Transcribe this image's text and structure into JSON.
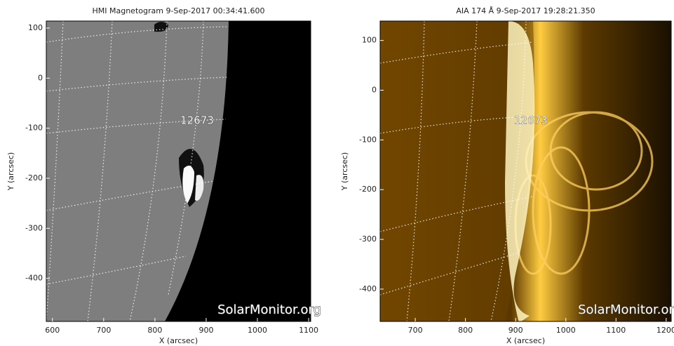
{
  "chart_data": [
    {
      "type": "image",
      "title": "HMI Magnetogram  9-Sep-2017 00:34:41.600",
      "xlabel": "X (arcsec)",
      "ylabel": "Y (arcsec)",
      "xlim": [
        588,
        1104
      ],
      "ylim": [
        -486,
        114
      ],
      "xticks": [
        600,
        700,
        800,
        900,
        1000,
        1100
      ],
      "yticks": [
        -400,
        -300,
        -200,
        -100,
        0,
        100
      ],
      "annotation": "12673",
      "watermark": "SolarMonitor.org"
    },
    {
      "type": "image",
      "title": "AIA 174 Å  9-Sep-2017 19:28:21.350",
      "xlabel": "X (arcsec)",
      "ylabel": "Y (arcsec)",
      "xlim": [
        630,
        1210
      ],
      "ylim": [
        -465,
        139
      ],
      "xticks": [
        700,
        800,
        900,
        1000,
        1100,
        1200
      ],
      "yticks": [
        -400,
        -300,
        -200,
        -100,
        0,
        100
      ],
      "annotation": "12673",
      "watermark": "SolarMonitor.org"
    }
  ]
}
